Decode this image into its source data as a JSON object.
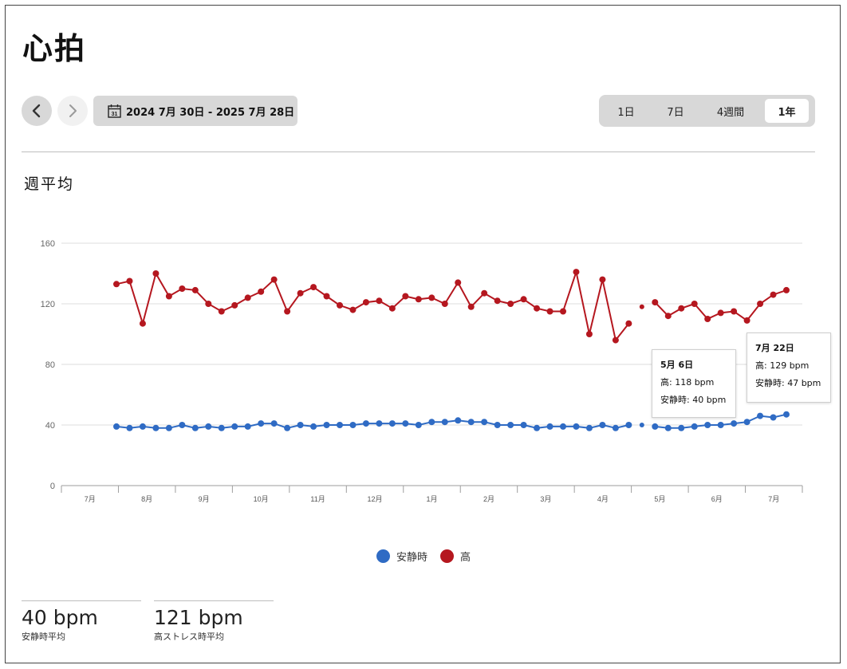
{
  "title": "心拍",
  "date_range": "2024 7月 30日 - 2025 7月 28日",
  "calendar_icon_text": "31",
  "periods": [
    {
      "label": "1日",
      "active": false
    },
    {
      "label": "7日",
      "active": false
    },
    {
      "label": "4週間",
      "active": false
    },
    {
      "label": "1年",
      "active": true
    }
  ],
  "subtitle": "週平均",
  "legend": [
    {
      "label": "安静時",
      "color": "#2f6bc4"
    },
    {
      "label": "高",
      "color": "#b5171f"
    }
  ],
  "stats": [
    {
      "value": "40 bpm",
      "label": "安静時平均"
    },
    {
      "value": "121 bpm",
      "label": "高ストレス時平均"
    }
  ],
  "tooltips": [
    {
      "title": "5月 6日",
      "high": "118 bpm",
      "rest": "40 bpm",
      "high_label": "高: ",
      "rest_label": "安静時: "
    },
    {
      "title": "7月 22日",
      "high": "129 bpm",
      "rest": "47 bpm",
      "high_label": "高: ",
      "rest_label": "安静時: "
    }
  ],
  "chart_data": {
    "type": "line",
    "ylim": [
      0,
      160
    ],
    "yticks": [
      0,
      40,
      80,
      120,
      160
    ],
    "grid": true,
    "xtick_labels": [
      "7月",
      "8月",
      "9月",
      "10月",
      "11月",
      "12月",
      "1月",
      "2月",
      "3月",
      "4月",
      "5月",
      "6月",
      "7月"
    ],
    "series": [
      {
        "name": "高",
        "color": "#b5171f",
        "values": [
          133,
          135,
          107,
          140,
          125,
          130,
          129,
          120,
          115,
          119,
          124,
          128,
          136,
          115,
          127,
          131,
          125,
          119,
          116,
          121,
          122,
          117,
          125,
          123,
          124,
          120,
          134,
          118,
          127,
          122,
          120,
          123,
          117,
          115,
          115,
          141,
          100,
          136,
          96,
          107,
          118,
          121,
          112,
          117,
          120,
          110,
          114,
          115,
          109,
          120,
          126,
          129
        ]
      },
      {
        "name": "安静時",
        "color": "#2f6bc4",
        "values": [
          39,
          38,
          39,
          38,
          38,
          40,
          38,
          39,
          38,
          39,
          39,
          41,
          41,
          38,
          40,
          39,
          40,
          40,
          40,
          41,
          41,
          41,
          41,
          40,
          42,
          42,
          43,
          42,
          42,
          40,
          40,
          40,
          38,
          39,
          39,
          39,
          38,
          40,
          38,
          40,
          40,
          39,
          38,
          38,
          39,
          40,
          40,
          41,
          42,
          46,
          45,
          47
        ]
      }
    ]
  }
}
